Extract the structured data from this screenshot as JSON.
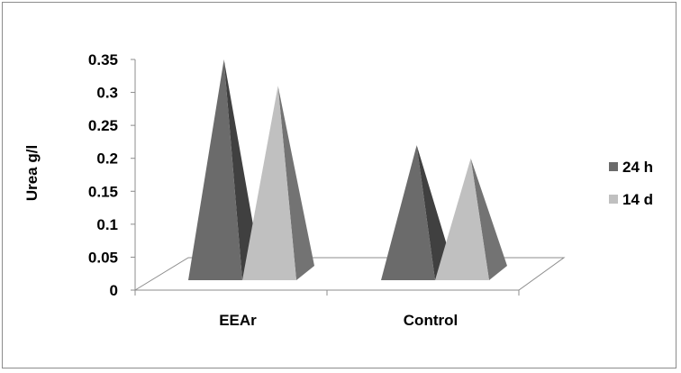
{
  "chart_data": {
    "type": "bar",
    "style": "3d-pyramid",
    "categories": [
      "EEAr",
      "Control"
    ],
    "series": [
      {
        "name": "24 h",
        "values": [
          0.35,
          0.22
        ],
        "color": "#6b6b6b"
      },
      {
        "name": "14 d",
        "values": [
          0.31,
          0.2
        ],
        "color": "#c0c0c0"
      }
    ],
    "ylabel": "Urea g/l",
    "xlabel": "",
    "ylim": [
      0,
      0.35
    ],
    "yticks": [
      "0",
      "0.05",
      "0.1",
      "0.15",
      "0.2",
      "0.25",
      "0.3",
      "0.35"
    ],
    "grid": false,
    "legend_position": "right"
  }
}
